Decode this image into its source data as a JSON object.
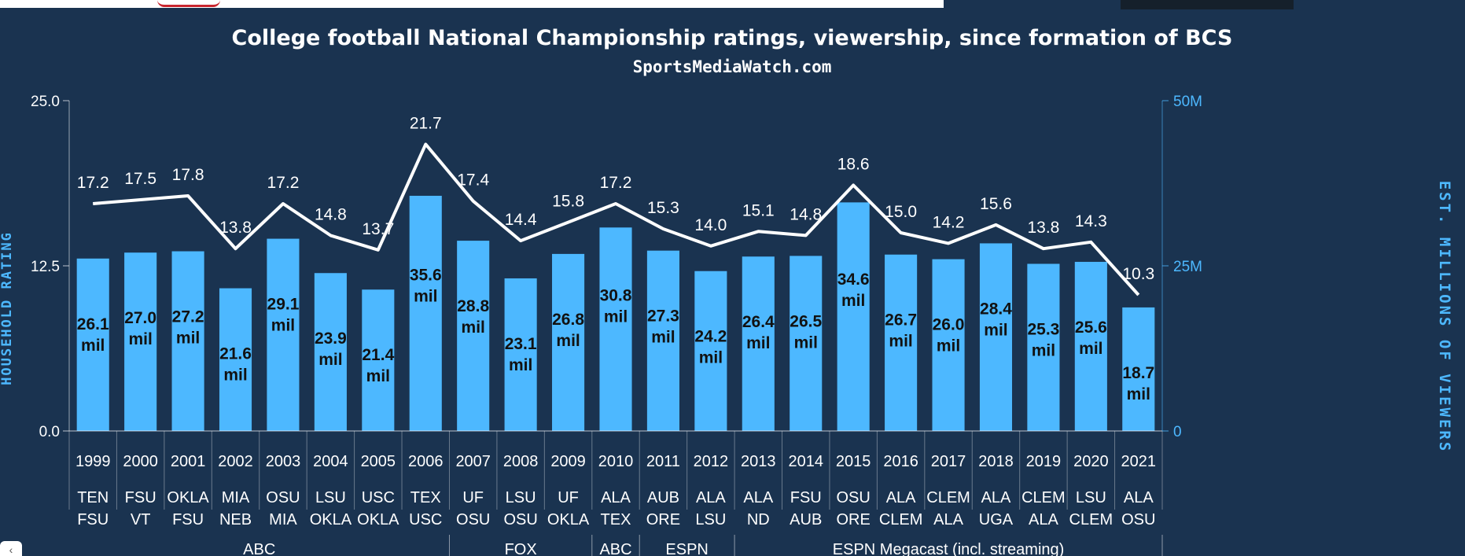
{
  "colors": {
    "background": "#1a3350",
    "bar": "#4db8ff",
    "line": "#ffffff",
    "axis_text": "#4db8ff",
    "label_text": "#ffffff",
    "bar_label_text": "#111111"
  },
  "chart_data": {
    "type": "bar",
    "title": "College football National Championship ratings, viewership, since formation of BCS",
    "subtitle": "SportsMediaWatch.com",
    "ylabel": "HOUSEHOLD RATING",
    "y2label": "EST. MILLIONS OF VIEWERS",
    "ylim": [
      0,
      25
    ],
    "y2lim": [
      0,
      50
    ],
    "yticks": [
      "0.0",
      "12.5",
      "25.0"
    ],
    "y2ticks": [
      "0",
      "25M",
      "50M"
    ],
    "grid": false,
    "categories": [
      "1999",
      "2000",
      "2001",
      "2002",
      "2003",
      "2004",
      "2005",
      "2006",
      "2007",
      "2008",
      "2009",
      "2010",
      "2011",
      "2012",
      "2013",
      "2014",
      "2015",
      "2016",
      "2017",
      "2018",
      "2019",
      "2020",
      "2021"
    ],
    "matchups": [
      [
        "TEN",
        "FSU"
      ],
      [
        "FSU",
        "VT"
      ],
      [
        "OKLA",
        "FSU"
      ],
      [
        "MIA",
        "NEB"
      ],
      [
        "OSU",
        "MIA"
      ],
      [
        "LSU",
        "OKLA"
      ],
      [
        "USC",
        "OKLA"
      ],
      [
        "TEX",
        "USC"
      ],
      [
        "UF",
        "OSU"
      ],
      [
        "LSU",
        "OSU"
      ],
      [
        "UF",
        "OKLA"
      ],
      [
        "ALA",
        "TEX"
      ],
      [
        "AUB",
        "ORE"
      ],
      [
        "ALA",
        "LSU"
      ],
      [
        "ALA",
        "ND"
      ],
      [
        "FSU",
        "AUB"
      ],
      [
        "OSU",
        "ORE"
      ],
      [
        "ALA",
        "CLEM"
      ],
      [
        "CLEM",
        "ALA"
      ],
      [
        "ALA",
        "UGA"
      ],
      [
        "CLEM",
        "ALA"
      ],
      [
        "LSU",
        "CLEM"
      ],
      [
        "ALA",
        "OSU"
      ]
    ],
    "series": [
      {
        "type": "line",
        "axis": "left",
        "values": [
          17.2,
          17.5,
          17.8,
          13.8,
          17.2,
          14.8,
          13.7,
          21.7,
          17.4,
          14.4,
          15.8,
          17.2,
          15.3,
          14.0,
          15.1,
          14.8,
          18.6,
          15.0,
          14.2,
          15.6,
          13.8,
          14.3,
          10.3
        ],
        "labels": [
          "17.2",
          "17.5",
          "17.8",
          "13.8",
          "17.2",
          "14.8",
          "13.7",
          "21.7",
          "17.4",
          "14.4",
          "15.8",
          "17.2",
          "15.3",
          "14.0",
          "15.1",
          "14.8",
          "18.6",
          "15.0",
          "14.2",
          "15.6",
          "13.8",
          "14.3",
          "10.3"
        ]
      },
      {
        "type": "bar",
        "axis": "right",
        "values": [
          26.1,
          27.0,
          27.2,
          21.6,
          29.1,
          23.9,
          21.4,
          35.6,
          28.8,
          23.1,
          26.8,
          30.8,
          27.3,
          24.2,
          26.4,
          26.5,
          34.6,
          26.7,
          26.0,
          28.4,
          25.3,
          25.6,
          18.7
        ],
        "labels": [
          "26.1",
          "27.0",
          "27.2",
          "21.6",
          "29.1",
          "23.9",
          "21.4",
          "35.6",
          "28.8",
          "23.1",
          "26.8",
          "30.8",
          "27.3",
          "24.2",
          "26.4",
          "26.5",
          "34.6",
          "26.7",
          "26.0",
          "28.4",
          "25.3",
          "25.6",
          "18.7"
        ],
        "unit_label": "mil"
      }
    ],
    "networks": [
      {
        "label": "ABC",
        "from": 0,
        "to": 7
      },
      {
        "label": "FOX",
        "from": 8,
        "to": 10
      },
      {
        "label": "ABC",
        "from": 11,
        "to": 11
      },
      {
        "label": "ESPN",
        "from": 12,
        "to": 13
      },
      {
        "label": "ESPN Megacast (incl. streaming)",
        "from": 14,
        "to": 22
      }
    ]
  }
}
